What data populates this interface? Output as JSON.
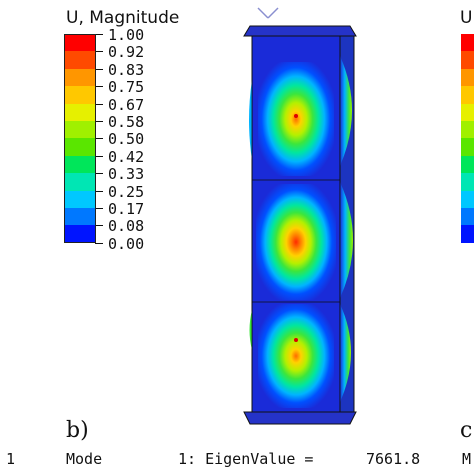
{
  "legend": {
    "title": "U, Magnitude",
    "right_title_fragment": "U",
    "ticks": [
      "1.00",
      "0.92",
      "0.83",
      "0.75",
      "0.67",
      "0.58",
      "0.50",
      "0.42",
      "0.33",
      "0.25",
      "0.17",
      "0.08",
      "0.00"
    ],
    "colors": [
      "#ff0000",
      "#ff4a00",
      "#ff9600",
      "#ffc800",
      "#e6f000",
      "#a0f000",
      "#5ae600",
      "#00e65a",
      "#00e6b4",
      "#00c8ff",
      "#0078ff",
      "#0014ff"
    ]
  },
  "labels": {
    "panel_b": "b)",
    "panel_c": "c",
    "left_number": "1"
  },
  "footer": {
    "mode_label": "Mode",
    "eigen_text": "1: EigenValue =",
    "eigen_value": "7661.8",
    "right_fragment": "M"
  }
}
